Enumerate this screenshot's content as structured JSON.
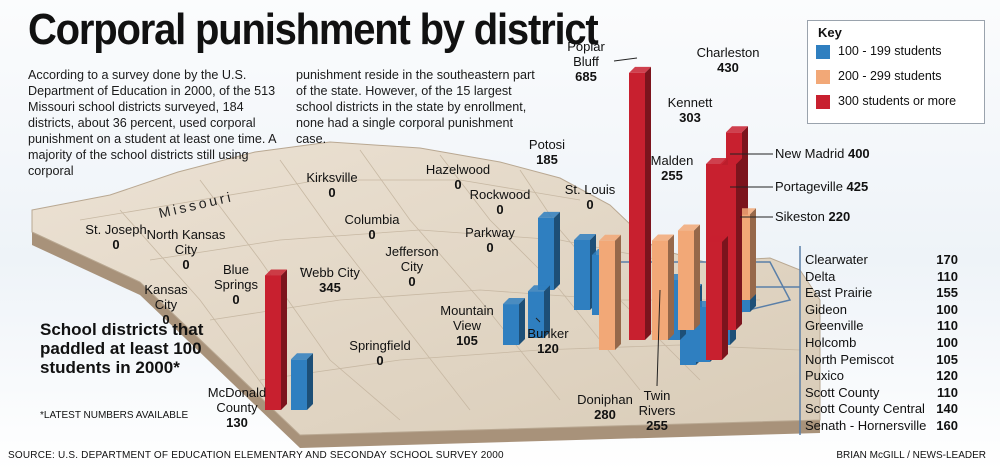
{
  "title": "Corporal punishment by district",
  "intro_col1": "According to a survey done by the U.S. Department of Education in 2000, of the 513 Missouri school districts surveyed, 184 districts, about 36 percent, used corporal punishment on a student at least one time. A majority of the school districts still using corporal",
  "intro_col2": "punishment reside in the southeastern part of the state. However, of the 15 largest school districts in the state by enrollment, none had a single corporal punishment case.",
  "state_label": "Missouri",
  "key": {
    "title": "Key",
    "items": [
      {
        "label": "100 - 199 students",
        "color": "#2f7fc0"
      },
      {
        "label": "200 - 299 students",
        "color": "#f2a877"
      },
      {
        "label": "300 students or more",
        "color": "#c8202f"
      }
    ]
  },
  "callout": "School districts that paddled at least 100 students in 2000*",
  "footnote": "*LATEST NUMBERS AVAILABLE",
  "source": "SOURCE: U.S. DEPARTMENT OF EDUCATION ELEMENTARY AND SECONDAY SCHOOL SURVEY 2000",
  "credit": "BRIAN McGILL / NEWS-LEADER",
  "chart_data": {
    "type": "bar",
    "title": "Corporal punishment by district",
    "categories": [
      "St. Joseph",
      "North Kansas City",
      "Kansas City",
      "Blue Springs",
      "Webb City",
      "Kirksville",
      "Columbia",
      "Jefferson City",
      "Springfield",
      "McDonald County",
      "Hazelwood",
      "Rockwood",
      "Parkway",
      "Potosi",
      "St. Louis",
      "Mountain View",
      "Bunker",
      "Poplar Bluff",
      "Doniphan",
      "Twin Rivers",
      "Malden",
      "Kennett",
      "Charleston",
      "New Madrid",
      "Portageville",
      "Sikeston"
    ],
    "values": [
      0,
      0,
      0,
      0,
      345,
      0,
      0,
      0,
      0,
      130,
      0,
      0,
      0,
      185,
      0,
      105,
      120,
      685,
      280,
      255,
      255,
      303,
      430,
      400,
      425,
      220
    ],
    "bootheel_table": [
      {
        "name": "Clearwater",
        "value": 170
      },
      {
        "name": "Delta",
        "value": 110
      },
      {
        "name": "East Prairie",
        "value": 155
      },
      {
        "name": "Gideon",
        "value": 100
      },
      {
        "name": "Greenville",
        "value": 110
      },
      {
        "name": "Holcomb",
        "value": 100
      },
      {
        "name": "North Pemiscot",
        "value": 105
      },
      {
        "name": "Puxico",
        "value": 120
      },
      {
        "name": "Scott County",
        "value": 110
      },
      {
        "name": "Scott County Central",
        "value": 140
      },
      {
        "name": "Senath - Hornersville",
        "value": 160
      }
    ]
  }
}
